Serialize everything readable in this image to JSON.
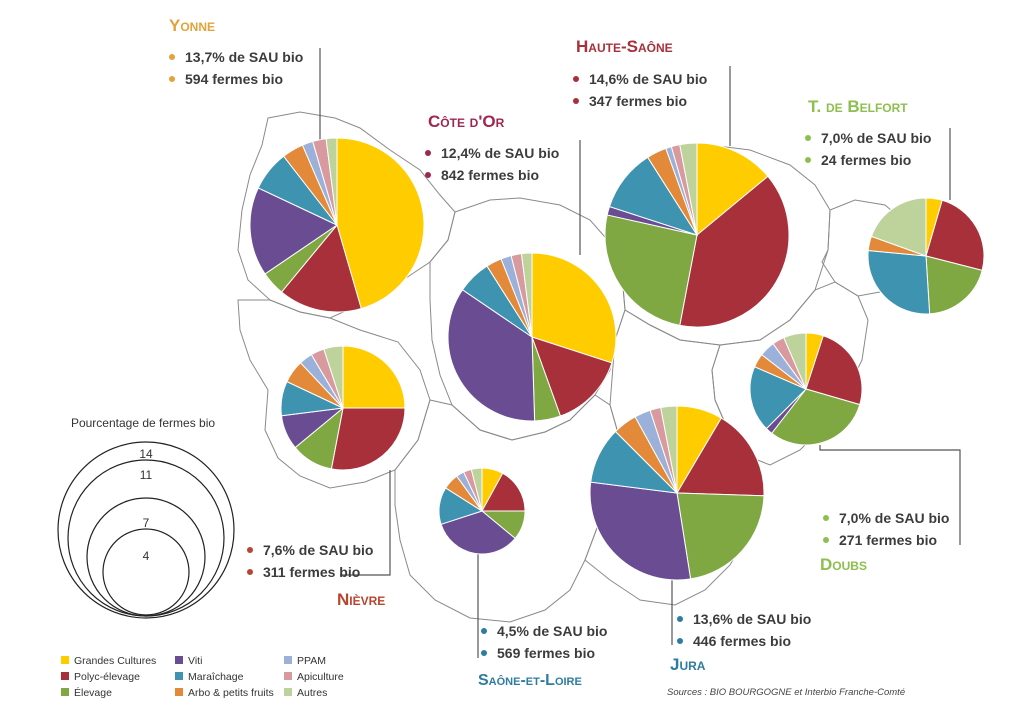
{
  "categories": [
    {
      "key": "gc",
      "label": "Grandes Cultures",
      "color": "#FFCC00"
    },
    {
      "key": "poly",
      "label": "Polyc-élevage",
      "color": "#A8303B"
    },
    {
      "key": "elev",
      "label": "Élevage",
      "color": "#7FA843"
    },
    {
      "key": "viti",
      "label": "Viti",
      "color": "#6A4C93"
    },
    {
      "key": "mara",
      "label": "Maraîchage",
      "color": "#3D93B0"
    },
    {
      "key": "arbo",
      "label": "Arbo & petits fruits",
      "color": "#E2893A"
    },
    {
      "key": "ppam",
      "label": "PPAM",
      "color": "#9BB1D9"
    },
    {
      "key": "api",
      "label": "Apiculture",
      "color": "#D89A9E"
    },
    {
      "key": "autres",
      "label": "Autres",
      "color": "#BDD39B"
    }
  ],
  "regions": [
    {
      "id": "yonne",
      "name": "Yonne",
      "color": "#E3A23A",
      "sau": "13,7% de SAU bio",
      "fermes": "594 fermes bio",
      "shares": {
        "gc": 45.5,
        "poly": 15.5,
        "elev": 4.5,
        "viti": 16.5,
        "mara": 7.5,
        "arbo": 4,
        "ppam": 2,
        "api": 2.5,
        "autres": 2
      }
    },
    {
      "id": "cote-dor",
      "name": "Côte d'Or",
      "color": "#9E2752",
      "sau": "12,4% de SAU bio",
      "fermes": "842 fermes bio",
      "shares": {
        "gc": 30,
        "poly": 14.5,
        "elev": 5,
        "viti": 35,
        "mara": 6.5,
        "arbo": 3,
        "ppam": 2,
        "api": 2,
        "autres": 2
      }
    },
    {
      "id": "haute-saone",
      "name": "Haute-Saône",
      "color": "#A8303B",
      "sau": "14,6% de SAU bio",
      "fermes": "347 fermes bio",
      "shares": {
        "gc": 14,
        "poly": 39,
        "elev": 25.5,
        "viti": 1.5,
        "mara": 11,
        "arbo": 3.5,
        "ppam": 1,
        "api": 1.5,
        "autres": 3
      }
    },
    {
      "id": "belfort",
      "name": "T. de Belfort",
      "color": "#8DBF4E",
      "sau": "7,0% de SAU bio",
      "fermes": "24 fermes bio",
      "shares": {
        "gc": 4.5,
        "poly": 24.5,
        "elev": 20,
        "viti": 0,
        "mara": 27.5,
        "arbo": 4,
        "ppam": 0,
        "api": 0,
        "autres": 19.5
      }
    },
    {
      "id": "nievre",
      "name": "Nièvre",
      "color": "#B8452E",
      "sau": "7,6% de SAU bio",
      "fermes": "311 fermes bio",
      "shares": {
        "gc": 25,
        "poly": 28,
        "elev": 11,
        "viti": 9,
        "mara": 9,
        "arbo": 6,
        "ppam": 3.5,
        "api": 3.5,
        "autres": 5
      }
    },
    {
      "id": "doubs",
      "name": "Doubs",
      "color": "#8DBF4E",
      "sau": "7,0% de SAU bio",
      "fermes": "271 fermes bio",
      "shares": {
        "gc": 5,
        "poly": 24.5,
        "elev": 31,
        "viti": 2,
        "mara": 19,
        "arbo": 4,
        "ppam": 4.5,
        "api": 3.5,
        "autres": 6.5
      }
    },
    {
      "id": "saone-et-loire",
      "name": "Saône-et-Loire",
      "color": "#2E7CA0",
      "sau": "4,5% de SAU bio",
      "fermes": "569 fermes bio",
      "shares": {
        "gc": 8,
        "poly": 17,
        "elev": 11,
        "viti": 34,
        "mara": 14,
        "arbo": 6,
        "ppam": 3,
        "api": 3,
        "autres": 4
      }
    },
    {
      "id": "jura",
      "name": "Jura",
      "color": "#2E7CA0",
      "sau": "13,6% de SAU bio",
      "fermes": "446 fermes bio",
      "shares": {
        "gc": 8.5,
        "poly": 17,
        "elev": 22,
        "viti": 29.5,
        "mara": 10.5,
        "arbo": 4.5,
        "ppam": 3,
        "api": 2,
        "autres": 3
      }
    }
  ],
  "scale": {
    "title": "Pourcentage de fermes bio",
    "values": [
      "14",
      "11",
      "7",
      "4"
    ]
  },
  "source": "Sources : BIO BOURGOGNE et Interbio Franche-Comté"
}
